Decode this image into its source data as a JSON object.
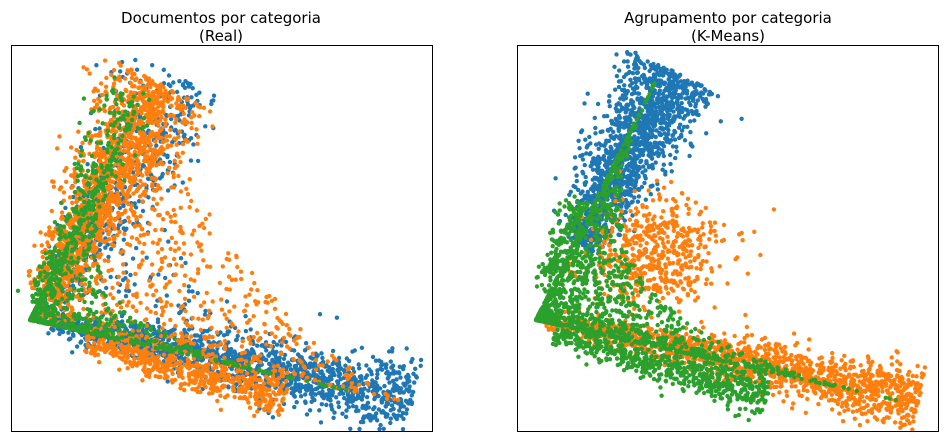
{
  "colors": {
    "c0": "#1f77b4",
    "c1": "#ff7f0e",
    "c2": "#2ca02c"
  },
  "chart_data": [
    {
      "type": "scatter",
      "title": "Documentos por categoria",
      "subtitle": "(Real)",
      "xlim": [
        0,
        1
      ],
      "ylim": [
        0,
        1
      ],
      "grid": false,
      "legend": "none",
      "axes_ticks": "hidden",
      "vertex": [
        0.04,
        0.28
      ],
      "upper_tip": [
        0.35,
        0.95
      ],
      "lower_tip": [
        0.95,
        0.06
      ],
      "series": [
        {
          "color_key": "c0",
          "points": "~20000",
          "regions": [
            "lower arm (dense, full length)",
            "upper arm outer edge",
            "scattered in wedge"
          ]
        },
        {
          "color_key": "c1",
          "points": "~15000",
          "regions": [
            "upper arm (dense)",
            "wedge interior",
            "lower arm upper band to x~0.7"
          ]
        },
        {
          "color_key": "c2",
          "points": "~6000",
          "regions": [
            "near vertex",
            "upper arm inner region"
          ]
        }
      ]
    },
    {
      "type": "scatter",
      "title": "Agrupamento por categoria",
      "subtitle": "(K-Means)",
      "xlim": [
        0,
        1
      ],
      "ylim": [
        0,
        1
      ],
      "grid": false,
      "legend": "none",
      "axes_ticks": "hidden",
      "vertex": [
        0.04,
        0.28
      ],
      "upper_tip": [
        0.35,
        0.95
      ],
      "lower_tip": [
        0.95,
        0.06
      ],
      "series": [
        {
          "color_key": "c0",
          "points": "~18000",
          "regions": [
            "upper arm only (dense)"
          ]
        },
        {
          "color_key": "c1",
          "points": "~14000",
          "regions": [
            "lower arm (full length)",
            "upper-middle wedge blob"
          ]
        },
        {
          "color_key": "c2",
          "points": "~16000",
          "regions": [
            "vertex region (dense)",
            "middle of lower arm to x~0.6"
          ]
        }
      ]
    }
  ]
}
